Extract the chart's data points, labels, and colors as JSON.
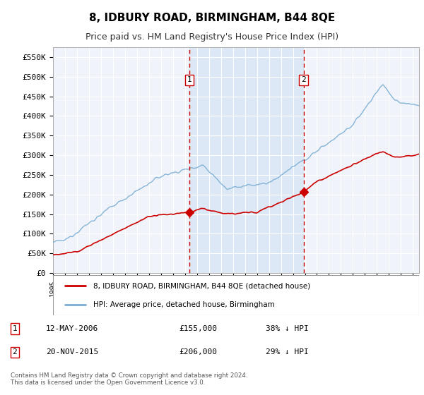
{
  "title": "8, IDBURY ROAD, BIRMINGHAM, B44 8QE",
  "subtitle": "Price paid vs. HM Land Registry's House Price Index (HPI)",
  "plot_bg_color": "#f0f4fa",
  "shaded_bg_color": "#dce8f5",
  "ylabel_ticks": [
    "£0",
    "£50K",
    "£100K",
    "£150K",
    "£200K",
    "£250K",
    "£300K",
    "£350K",
    "£400K",
    "£450K",
    "£500K",
    "£550K"
  ],
  "ytick_values": [
    0,
    50000,
    100000,
    150000,
    200000,
    250000,
    300000,
    350000,
    400000,
    450000,
    500000,
    550000
  ],
  "ylim": [
    0,
    575000
  ],
  "xlim_start": 1995.0,
  "xlim_end": 2025.5,
  "sale1_x": 2006.36,
  "sale1_y": 155000,
  "sale1_label": "1",
  "sale1_date": "12-MAY-2006",
  "sale1_price": "£155,000",
  "sale1_pct": "38% ↓ HPI",
  "sale2_x": 2015.89,
  "sale2_y": 206000,
  "sale2_label": "2",
  "sale2_date": "20-NOV-2015",
  "sale2_price": "£206,000",
  "sale2_pct": "29% ↓ HPI",
  "legend_label_red": "8, IDBURY ROAD, BIRMINGHAM, B44 8QE (detached house)",
  "legend_label_blue": "HPI: Average price, detached house, Birmingham",
  "footer": "Contains HM Land Registry data © Crown copyright and database right 2024.\nThis data is licensed under the Open Government Licence v3.0.",
  "red_color": "#cc0000",
  "blue_color": "#7aadd4",
  "dashed_color": "#cc0000",
  "grid_color": "#cccccc",
  "title_fontsize": 11,
  "subtitle_fontsize": 9
}
